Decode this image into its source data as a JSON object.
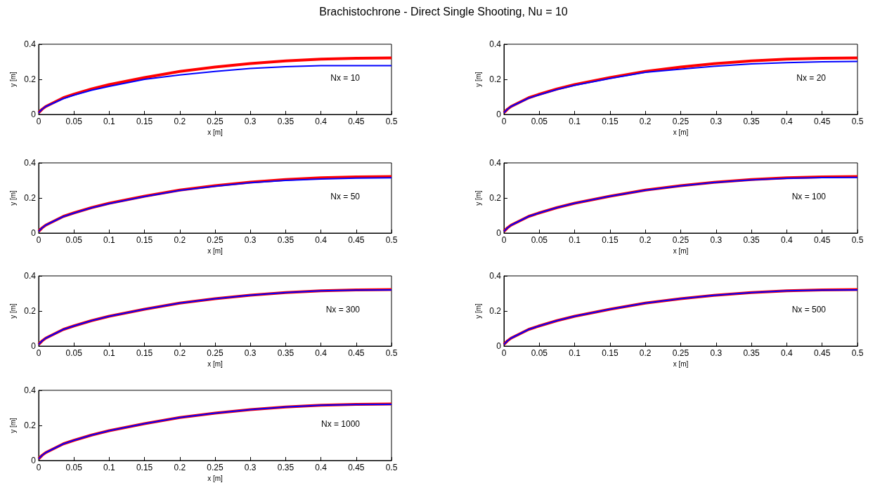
{
  "chart_data": [
    {
      "type": "line",
      "title": "Brachistochrone - Direct Single Shooting, Nu = 10",
      "xlabel": "x [m]",
      "ylabel": "y [m]",
      "xlim": [
        0,
        0.5
      ],
      "xticks": [
        0,
        0.05,
        0.1,
        0.15,
        0.2,
        0.25,
        0.3,
        0.35,
        0.4,
        0.45,
        0.5
      ],
      "ylim": [
        0,
        0.4
      ],
      "yticks": [
        0,
        0.2,
        0.4
      ],
      "marker": "none",
      "annotations": [
        "Nx = 10"
      ],
      "x": [
        0,
        0.005,
        0.01,
        0.02,
        0.035,
        0.05,
        0.075,
        0.1,
        0.15,
        0.2,
        0.25,
        0.3,
        0.35,
        0.4,
        0.45,
        0.5
      ],
      "series": [
        {
          "color": "#ff0000",
          "values": [
            0.01,
            0.03,
            0.045,
            0.065,
            0.095,
            0.115,
            0.145,
            0.17,
            0.21,
            0.245,
            0.27,
            0.29,
            0.305,
            0.315,
            0.32,
            0.322
          ]
        },
        {
          "color": "#0000ff",
          "values": [
            0.01,
            0.03,
            0.045,
            0.063,
            0.09,
            0.11,
            0.138,
            0.16,
            0.2,
            0.225,
            0.245,
            0.262,
            0.272,
            0.278,
            0.278,
            0.278
          ]
        }
      ]
    },
    {
      "type": "line",
      "xlabel": "x [m]",
      "ylabel": "y [m]",
      "xlim": [
        0,
        0.5
      ],
      "xticks": [
        0,
        0.05,
        0.1,
        0.15,
        0.2,
        0.25,
        0.3,
        0.35,
        0.4,
        0.45,
        0.5
      ],
      "ylim": [
        0,
        0.4
      ],
      "yticks": [
        0,
        0.2,
        0.4
      ],
      "marker": "none",
      "annotations": [
        "Nx = 20"
      ],
      "x": [
        0,
        0.005,
        0.01,
        0.02,
        0.035,
        0.05,
        0.075,
        0.1,
        0.15,
        0.2,
        0.25,
        0.3,
        0.35,
        0.4,
        0.45,
        0.5
      ],
      "series": [
        {
          "color": "#ff0000",
          "values": [
            0.01,
            0.03,
            0.045,
            0.065,
            0.095,
            0.115,
            0.145,
            0.17,
            0.21,
            0.245,
            0.27,
            0.29,
            0.305,
            0.315,
            0.32,
            0.322
          ]
        },
        {
          "color": "#0000ff",
          "values": [
            0.01,
            0.03,
            0.045,
            0.064,
            0.093,
            0.112,
            0.142,
            0.166,
            0.205,
            0.24,
            0.258,
            0.275,
            0.288,
            0.295,
            0.3,
            0.302
          ]
        }
      ]
    },
    {
      "type": "line",
      "xlabel": "x [m]",
      "ylabel": "y [m]",
      "xlim": [
        0,
        0.5
      ],
      "xticks": [
        0,
        0.05,
        0.1,
        0.15,
        0.2,
        0.25,
        0.3,
        0.35,
        0.4,
        0.45,
        0.5
      ],
      "ylim": [
        0,
        0.4
      ],
      "yticks": [
        0,
        0.2,
        0.4
      ],
      "marker": "none",
      "annotations": [
        "Nx = 50"
      ],
      "x": [
        0,
        0.005,
        0.01,
        0.02,
        0.035,
        0.05,
        0.075,
        0.1,
        0.15,
        0.2,
        0.25,
        0.3,
        0.35,
        0.4,
        0.45,
        0.5
      ],
      "series": [
        {
          "color": "#ff0000",
          "values": [
            0.01,
            0.03,
            0.045,
            0.065,
            0.095,
            0.115,
            0.145,
            0.17,
            0.21,
            0.245,
            0.27,
            0.29,
            0.305,
            0.315,
            0.32,
            0.322
          ]
        },
        {
          "color": "#0000ff",
          "values": [
            0.01,
            0.03,
            0.045,
            0.065,
            0.094,
            0.114,
            0.144,
            0.168,
            0.208,
            0.243,
            0.267,
            0.287,
            0.3,
            0.308,
            0.313,
            0.315
          ]
        }
      ]
    },
    {
      "type": "line",
      "xlabel": "x [m]",
      "ylabel": "y [m]",
      "xlim": [
        0,
        0.5
      ],
      "xticks": [
        0,
        0.05,
        0.1,
        0.15,
        0.2,
        0.25,
        0.3,
        0.35,
        0.4,
        0.45,
        0.5
      ],
      "ylim": [
        0,
        0.4
      ],
      "yticks": [
        0,
        0.2,
        0.4
      ],
      "marker": "none",
      "annotations": [
        "Nx = 100"
      ],
      "x": [
        0,
        0.005,
        0.01,
        0.02,
        0.035,
        0.05,
        0.075,
        0.1,
        0.15,
        0.2,
        0.25,
        0.3,
        0.35,
        0.4,
        0.45,
        0.5
      ],
      "series": [
        {
          "color": "#ff0000",
          "values": [
            0.01,
            0.03,
            0.045,
            0.065,
            0.095,
            0.115,
            0.145,
            0.17,
            0.21,
            0.245,
            0.27,
            0.29,
            0.305,
            0.315,
            0.32,
            0.322
          ]
        },
        {
          "color": "#0000ff",
          "values": [
            0.01,
            0.03,
            0.045,
            0.065,
            0.095,
            0.115,
            0.145,
            0.17,
            0.21,
            0.244,
            0.269,
            0.289,
            0.303,
            0.312,
            0.316,
            0.317
          ]
        }
      ]
    },
    {
      "type": "line",
      "xlabel": "x [m]",
      "ylabel": "y [m]",
      "xlim": [
        0,
        0.5
      ],
      "xticks": [
        0,
        0.05,
        0.1,
        0.15,
        0.2,
        0.25,
        0.3,
        0.35,
        0.4,
        0.45,
        0.5
      ],
      "ylim": [
        0,
        0.4
      ],
      "yticks": [
        0,
        0.2,
        0.4
      ],
      "marker": "none",
      "annotations": [
        "Nx = 300"
      ],
      "x": [
        0,
        0.005,
        0.01,
        0.02,
        0.035,
        0.05,
        0.075,
        0.1,
        0.15,
        0.2,
        0.25,
        0.3,
        0.35,
        0.4,
        0.45,
        0.5
      ],
      "series": [
        {
          "color": "#ff0000",
          "values": [
            0.01,
            0.03,
            0.045,
            0.065,
            0.095,
            0.115,
            0.145,
            0.17,
            0.21,
            0.245,
            0.27,
            0.29,
            0.305,
            0.315,
            0.32,
            0.322
          ]
        },
        {
          "color": "#0000ff",
          "values": [
            0.01,
            0.03,
            0.045,
            0.065,
            0.095,
            0.115,
            0.145,
            0.17,
            0.21,
            0.245,
            0.27,
            0.29,
            0.305,
            0.315,
            0.319,
            0.32
          ]
        }
      ]
    },
    {
      "type": "line",
      "xlabel": "x [m]",
      "ylabel": "y [m]",
      "xlim": [
        0,
        0.5
      ],
      "xticks": [
        0,
        0.05,
        0.1,
        0.15,
        0.2,
        0.25,
        0.3,
        0.35,
        0.4,
        0.45,
        0.5
      ],
      "ylim": [
        0,
        0.4
      ],
      "yticks": [
        0,
        0.2,
        0.4
      ],
      "marker": "none",
      "annotations": [
        "Nx = 500"
      ],
      "x": [
        0,
        0.005,
        0.01,
        0.02,
        0.035,
        0.05,
        0.075,
        0.1,
        0.15,
        0.2,
        0.25,
        0.3,
        0.35,
        0.4,
        0.45,
        0.5
      ],
      "series": [
        {
          "color": "#ff0000",
          "values": [
            0.01,
            0.03,
            0.045,
            0.065,
            0.095,
            0.115,
            0.145,
            0.17,
            0.21,
            0.245,
            0.27,
            0.29,
            0.305,
            0.315,
            0.32,
            0.322
          ]
        },
        {
          "color": "#0000ff",
          "values": [
            0.01,
            0.03,
            0.045,
            0.065,
            0.095,
            0.115,
            0.145,
            0.17,
            0.21,
            0.245,
            0.27,
            0.29,
            0.305,
            0.315,
            0.319,
            0.32
          ]
        }
      ]
    },
    {
      "type": "line",
      "xlabel": "x [m]",
      "ylabel": "y [m]",
      "xlim": [
        0,
        0.5
      ],
      "xticks": [
        0,
        0.05,
        0.1,
        0.15,
        0.2,
        0.25,
        0.3,
        0.35,
        0.4,
        0.45,
        0.5
      ],
      "ylim": [
        0,
        0.4
      ],
      "yticks": [
        0,
        0.2,
        0.4
      ],
      "marker": "none",
      "annotations": [
        "Nx = 1000"
      ],
      "x": [
        0,
        0.005,
        0.01,
        0.02,
        0.035,
        0.05,
        0.075,
        0.1,
        0.15,
        0.2,
        0.25,
        0.3,
        0.35,
        0.4,
        0.45,
        0.5
      ],
      "series": [
        {
          "color": "#ff0000",
          "values": [
            0.01,
            0.03,
            0.045,
            0.065,
            0.095,
            0.115,
            0.145,
            0.17,
            0.21,
            0.245,
            0.27,
            0.29,
            0.305,
            0.315,
            0.32,
            0.322
          ]
        },
        {
          "color": "#0000ff",
          "values": [
            0.01,
            0.03,
            0.045,
            0.065,
            0.095,
            0.115,
            0.145,
            0.17,
            0.21,
            0.245,
            0.27,
            0.29,
            0.305,
            0.315,
            0.319,
            0.32
          ]
        }
      ]
    }
  ]
}
